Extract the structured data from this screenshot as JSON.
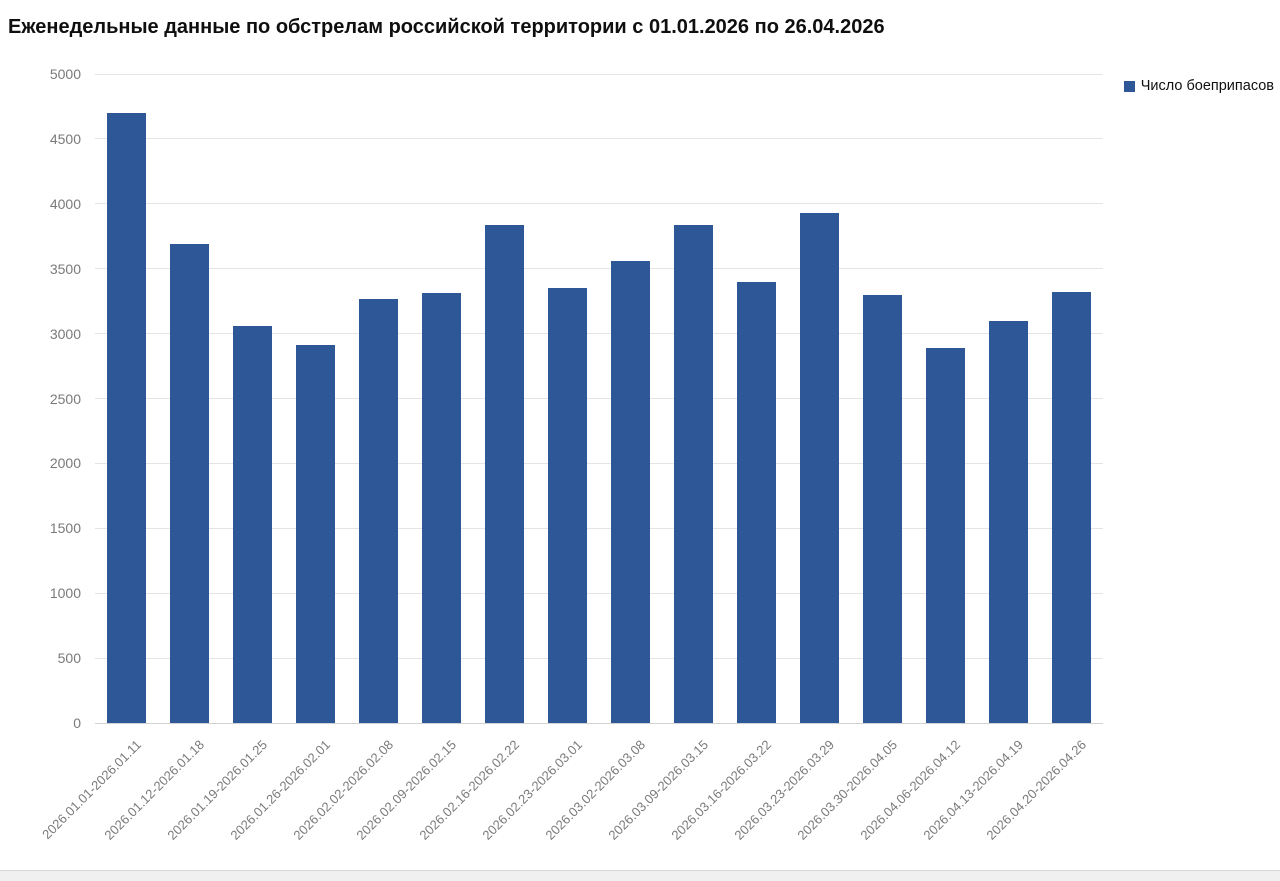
{
  "page": {
    "title": "Еженедельные данные по обстрелам российской территории с 01.01.2026 по 26.04.2026"
  },
  "legend": {
    "label": "Число боеприпасов",
    "marker_color": "#2e5798"
  },
  "colors": {
    "bar": "#2e5798",
    "gridline": "#e4e4e4",
    "baseline": "#d2d2d2",
    "axis_text": "#7a7a7a",
    "title_text": "#0f0f0f"
  },
  "chart_data": {
    "type": "bar",
    "title": "Еженедельные данные по обстрелам российской территории с 01.01.2026 по 26.04.2026",
    "categories": [
      "2026.01.01-2026.01.11",
      "2026.01.12-2026.01.18",
      "2026.01.19-2026.01.25",
      "2026.01.26-2026.02.01",
      "2026.02.02-2026.02.08",
      "2026.02.09-2026.02.15",
      "2026.02.16-2026.02.22",
      "2026.02.23-2026.03.01",
      "2026.03.02-2026.03.08",
      "2026.03.09-2026.03.15",
      "2026.03.16-2026.03.22",
      "2026.03.23-2026.03.29",
      "2026.03.30-2026.04.05",
      "2026.04.06-2026.04.12",
      "2026.04.13-2026.04.19",
      "2026.04.20-2026.04.26"
    ],
    "series": [
      {
        "name": "Число боеприпасов",
        "values": [
          4700,
          3690,
          3060,
          2910,
          3270,
          3310,
          3840,
          3350,
          3560,
          3840,
          3400,
          3930,
          3300,
          2890,
          3100,
          3320
        ]
      }
    ],
    "xlabel": "",
    "ylabel": "",
    "ylim": [
      0,
      5000
    ],
    "ytick_interval": 500,
    "yticks": [
      0,
      500,
      1000,
      1500,
      2000,
      2500,
      3000,
      3500,
      4000,
      4500,
      5000
    ],
    "grid": "horizontal",
    "legend_position": "top-right",
    "bar_color": "#2e5798",
    "xtick_rotation_deg": 45
  }
}
